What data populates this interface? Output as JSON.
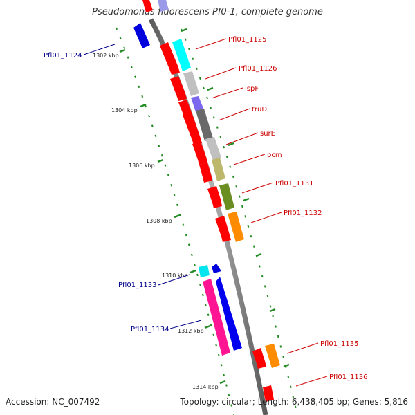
{
  "title": "Pseudomonas fluorescens Pf0-1, complete genome",
  "footer": {
    "accession": "Accession: NC_007492",
    "topology": "Topology: circular; Length: 6,438,405 bp; Genes: 5,816"
  },
  "colors": {
    "backbone": "#8c8c8c",
    "tick_dots": "#228b22",
    "gene_label_right": "#cc0000",
    "gene_label_left": "#00008b"
  },
  "scale_labels": [
    "1302 kbp",
    "1304 kbp",
    "1306 kbp",
    "1308 kbp",
    "1310 kbp",
    "1312 kbp",
    "1314 kbp"
  ],
  "genes_left": [
    {
      "label": "Pfl01_1124",
      "color": "#0000dd"
    },
    {
      "label": "Pfl01_1133",
      "color": "#00e5ee"
    },
    {
      "label": "Pfl01_1134",
      "color": "#ff1493"
    }
  ],
  "genes_right": [
    {
      "label": "Pfl01_1125",
      "color": "#00ffff"
    },
    {
      "label": "Pfl01_1126",
      "color": "#c0c0c0"
    },
    {
      "label": "ispF",
      "color": "#7b68ee"
    },
    {
      "label": "truD",
      "color": "#696969"
    },
    {
      "label": "surE",
      "color": "#c0c0c0"
    },
    {
      "label": "pcm",
      "color": "#bdb76b"
    },
    {
      "label": "Pfl01_1131",
      "color": "#6b8e23"
    },
    {
      "label": "Pfl01_1132",
      "color": "#ff8c00"
    },
    {
      "label": "Pfl01_1135",
      "color": "#ff8c00"
    },
    {
      "label": "Pfl01_1136",
      "color": "#ff0000"
    }
  ]
}
